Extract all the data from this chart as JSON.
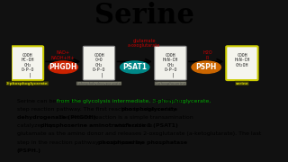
{
  "title": "Serine",
  "title_fontsize": 22,
  "title_bg_color": "#b8dde8",
  "outer_bg": "#111111",
  "diagram_bg": "#e8e8e0",
  "text_bg": "#c8bc8a",
  "body_text": "Serine can be derived from the glycolysis intermediate, 3-phosphoglycerate, in a three-\nstep reaction pathway. The first reaction is catalyzed by phosphoglycerate\ndehydrogenase (PHGDH). The second reaction is a simple transamination\ncatalyzed by phosphoserine aminotransferase 1 (PSAT1) which utilizes\nglutamate as the amino donor and releases 2-oxoglutarate (a-ketoglutarate). The last\nstep in the reaction pathway is catalyzed by phosphoserine phosphatase\n(PSPH.)",
  "highlighted_phrases": [
    "from the glycolysis intermediate, 3-phosphoglycerate,",
    "phosphoglycerate\ndehydrogenase (PHGDH).",
    "phosphoserine aminotransferase 1 (PSAT1)",
    "phosphoserine phosphatase\n(PSPH.)"
  ],
  "enzyme1_label": "PHGDH",
  "enzyme1_color": "#cc2200",
  "enzyme2_label": "PSAT1",
  "enzyme2_color": "#008888",
  "enzyme3_label": "PSPH",
  "enzyme3_color": "#cc6600",
  "label1": "3-phosphoglycerate",
  "label2": "3-phosphohydroxypyruvate",
  "label3": "O-phosphoserine",
  "label4": "serine",
  "label1_color": "#cccc00",
  "label4_color": "#cccc00",
  "cofactor1": "NAD+",
  "cofactor2": "NADH+H+",
  "cofactor3": "glutamate",
  "cofactor4": "a-oxoglutarate",
  "cofactor5": "H2O",
  "cofactor6": "Pi"
}
